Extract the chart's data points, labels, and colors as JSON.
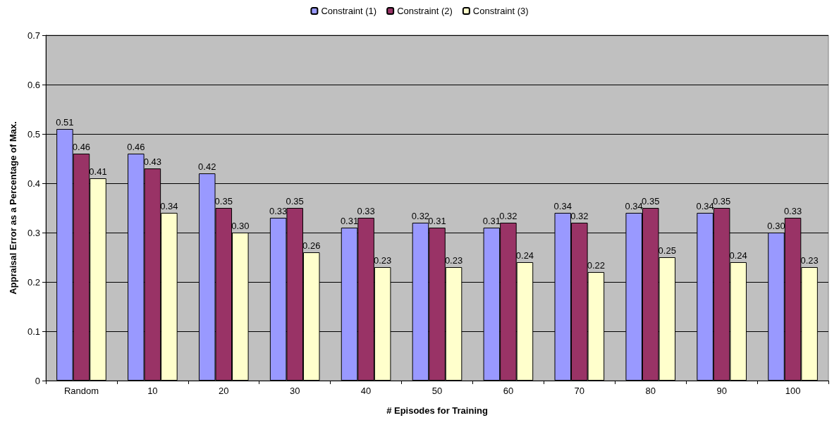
{
  "chart_data": {
    "type": "bar",
    "xlabel": "# Episodes for Training",
    "ylabel": "Appraisal Error as a Percentage of Max.",
    "categories": [
      "Random",
      "10",
      "20",
      "30",
      "40",
      "50",
      "60",
      "70",
      "80",
      "90",
      "100"
    ],
    "series": [
      {
        "name": "Constraint (1)",
        "color": "#9999ff",
        "values": [
          0.51,
          0.46,
          0.42,
          0.33,
          0.31,
          0.32,
          0.31,
          0.34,
          0.34,
          0.34,
          0.3
        ],
        "value_labels": [
          "0.51",
          "0.46",
          "0.42",
          "0.33",
          "0.31",
          "0.32",
          "0.31",
          "0.34",
          "0.34",
          "0.34",
          "0.30"
        ]
      },
      {
        "name": "Constraint (2)",
        "color": "#993366",
        "values": [
          0.46,
          0.43,
          0.35,
          0.35,
          0.33,
          0.31,
          0.32,
          0.32,
          0.35,
          0.35,
          0.33
        ],
        "value_labels": [
          "0.46",
          "0.43",
          "0.35",
          "0.35",
          "0.33",
          "0.31",
          "0.32",
          "0.32",
          "0.35",
          "0.35",
          "0.33"
        ]
      },
      {
        "name": "Constraint (3)",
        "color": "#ffffcc",
        "values": [
          0.41,
          0.34,
          0.3,
          0.26,
          0.23,
          0.23,
          0.24,
          0.22,
          0.25,
          0.24,
          0.23
        ],
        "value_labels": [
          "0.41",
          "0.34",
          "0.30",
          "0.26",
          "0.23",
          "0.23",
          "0.24",
          "0.22",
          "0.25",
          "0.24",
          "0.23"
        ]
      }
    ],
    "ylim": [
      0,
      0.7
    ],
    "yticks": [
      0,
      0.1,
      0.2,
      0.3,
      0.4,
      0.5,
      0.6,
      0.7
    ],
    "grid": "y",
    "legend": "top"
  }
}
